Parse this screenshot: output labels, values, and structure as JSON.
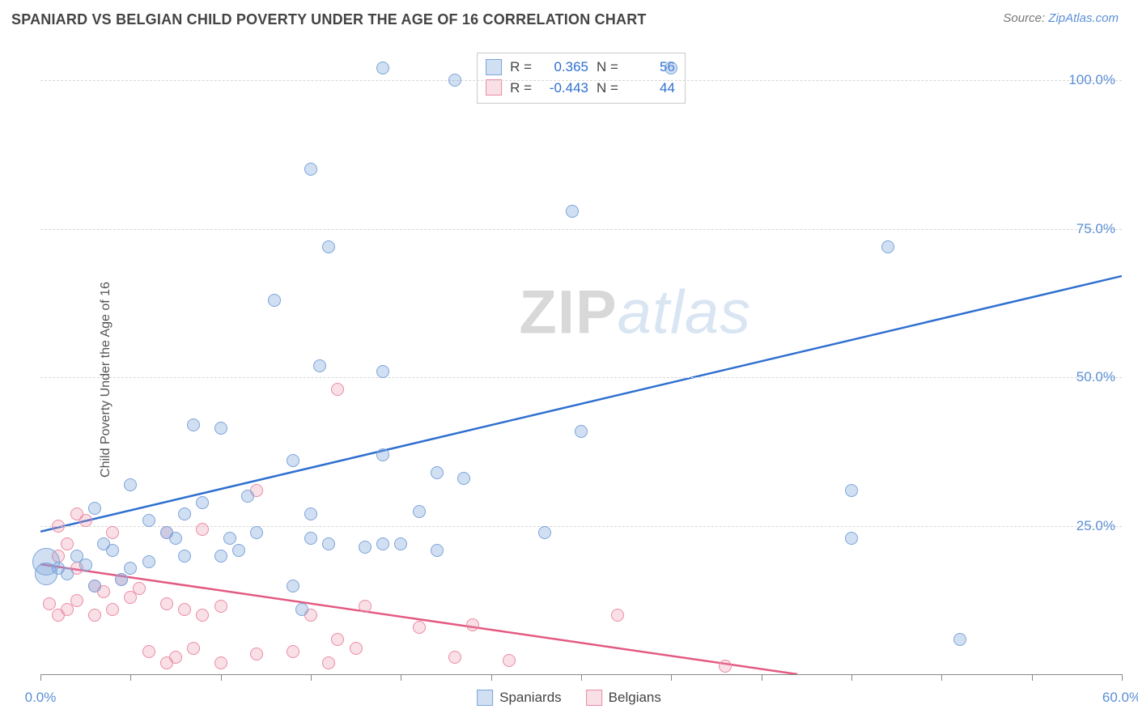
{
  "header": {
    "title": "SPANIARD VS BELGIAN CHILD POVERTY UNDER THE AGE OF 16 CORRELATION CHART",
    "source_prefix": "Source: ",
    "source_link": "ZipAtlas.com"
  },
  "watermark": {
    "zip": "ZIP",
    "atlas": "atlas"
  },
  "chart": {
    "type": "scatter",
    "ylabel": "Child Poverty Under the Age of 16",
    "xlim": [
      0,
      60
    ],
    "ylim": [
      0,
      105
    ],
    "xtick_positions": [
      0,
      5,
      10,
      15,
      20,
      25,
      30,
      35,
      40,
      45,
      50,
      55,
      60
    ],
    "xtick_labels": {
      "0": "0.0%",
      "60": "60.0%"
    },
    "ytick_positions": [
      25,
      50,
      75,
      100
    ],
    "ytick_labels": {
      "25": "25.0%",
      "50": "50.0%",
      "75": "75.0%",
      "100": "100.0%"
    },
    "grid_color": "#d6d6d6",
    "background": "#ffffff",
    "axis_color": "#888888",
    "label_color": "#5b8fd6",
    "title_fontsize": 18,
    "label_fontsize": 16,
    "tick_fontsize": 17,
    "default_marker_size": 16
  },
  "series": {
    "spaniards": {
      "label": "Spaniards",
      "color_fill": "rgba(124,164,219,0.35)",
      "color_stroke": "#7ca4db",
      "trend_color": "#2f6fd0",
      "trend_width": 2.5,
      "correlation_r": "0.365",
      "correlation_n": "56",
      "trend_line": {
        "x1": 0,
        "y1": 24,
        "x2": 60,
        "y2": 67
      },
      "points": [
        {
          "x": 0.3,
          "y": 19,
          "s": 34
        },
        {
          "x": 0.3,
          "y": 17,
          "s": 28
        },
        {
          "x": 19,
          "y": 102
        },
        {
          "x": 35,
          "y": 102
        },
        {
          "x": 23,
          "y": 100
        },
        {
          "x": 15,
          "y": 85
        },
        {
          "x": 29.5,
          "y": 78
        },
        {
          "x": 16,
          "y": 72
        },
        {
          "x": 47,
          "y": 72
        },
        {
          "x": 13,
          "y": 63
        },
        {
          "x": 15.5,
          "y": 52
        },
        {
          "x": 19,
          "y": 51
        },
        {
          "x": 8.5,
          "y": 42
        },
        {
          "x": 10,
          "y": 41.5
        },
        {
          "x": 30,
          "y": 41
        },
        {
          "x": 14,
          "y": 36
        },
        {
          "x": 22,
          "y": 34
        },
        {
          "x": 19,
          "y": 37
        },
        {
          "x": 23.5,
          "y": 33
        },
        {
          "x": 5,
          "y": 32
        },
        {
          "x": 45,
          "y": 31
        },
        {
          "x": 3,
          "y": 28
        },
        {
          "x": 9,
          "y": 29
        },
        {
          "x": 11.5,
          "y": 30
        },
        {
          "x": 6,
          "y": 26
        },
        {
          "x": 8,
          "y": 27
        },
        {
          "x": 15,
          "y": 27
        },
        {
          "x": 21,
          "y": 27.5
        },
        {
          "x": 28,
          "y": 24
        },
        {
          "x": 45,
          "y": 23
        },
        {
          "x": 1,
          "y": 18
        },
        {
          "x": 1.5,
          "y": 17
        },
        {
          "x": 2,
          "y": 20
        },
        {
          "x": 2.5,
          "y": 18.5
        },
        {
          "x": 3,
          "y": 15
        },
        {
          "x": 4,
          "y": 21
        },
        {
          "x": 4.5,
          "y": 16
        },
        {
          "x": 6,
          "y": 19
        },
        {
          "x": 7,
          "y": 24
        },
        {
          "x": 7.5,
          "y": 23
        },
        {
          "x": 10,
          "y": 20
        },
        {
          "x": 10.5,
          "y": 23
        },
        {
          "x": 12,
          "y": 24
        },
        {
          "x": 14,
          "y": 15
        },
        {
          "x": 15,
          "y": 23
        },
        {
          "x": 16,
          "y": 22
        },
        {
          "x": 18,
          "y": 21.5
        },
        {
          "x": 19,
          "y": 22
        },
        {
          "x": 20,
          "y": 22
        },
        {
          "x": 22,
          "y": 21
        },
        {
          "x": 8,
          "y": 20
        },
        {
          "x": 3.5,
          "y": 22
        },
        {
          "x": 14.5,
          "y": 11
        },
        {
          "x": 5,
          "y": 18
        },
        {
          "x": 51,
          "y": 6
        },
        {
          "x": 11,
          "y": 21
        }
      ]
    },
    "belgians": {
      "label": "Belgians",
      "color_fill": "rgba(235,140,165,0.28)",
      "color_stroke": "#eb8ca5",
      "trend_color": "#e35a82",
      "trend_width": 2.5,
      "correlation_r": "-0.443",
      "correlation_n": "44",
      "trend_line": {
        "x1": 0,
        "y1": 18.5,
        "x2": 42,
        "y2": 0
      },
      "points": [
        {
          "x": 16.5,
          "y": 48
        },
        {
          "x": 12,
          "y": 31
        },
        {
          "x": 1,
          "y": 25
        },
        {
          "x": 2,
          "y": 27
        },
        {
          "x": 2.5,
          "y": 26
        },
        {
          "x": 4,
          "y": 24
        },
        {
          "x": 7,
          "y": 24
        },
        {
          "x": 9,
          "y": 24.5
        },
        {
          "x": 1,
          "y": 20
        },
        {
          "x": 1.5,
          "y": 22
        },
        {
          "x": 2,
          "y": 18
        },
        {
          "x": 3,
          "y": 15
        },
        {
          "x": 3.5,
          "y": 14
        },
        {
          "x": 4.5,
          "y": 16
        },
        {
          "x": 5,
          "y": 13
        },
        {
          "x": 5.5,
          "y": 14.5
        },
        {
          "x": 0.5,
          "y": 12
        },
        {
          "x": 1,
          "y": 10
        },
        {
          "x": 1.5,
          "y": 11
        },
        {
          "x": 2,
          "y": 12.5
        },
        {
          "x": 3,
          "y": 10
        },
        {
          "x": 4,
          "y": 11
        },
        {
          "x": 7,
          "y": 12
        },
        {
          "x": 8,
          "y": 11
        },
        {
          "x": 9,
          "y": 10
        },
        {
          "x": 10,
          "y": 11.5
        },
        {
          "x": 6,
          "y": 4
        },
        {
          "x": 7,
          "y": 2
        },
        {
          "x": 7.5,
          "y": 3
        },
        {
          "x": 8.5,
          "y": 4.5
        },
        {
          "x": 10,
          "y": 2
        },
        {
          "x": 12,
          "y": 3.5
        },
        {
          "x": 14,
          "y": 4
        },
        {
          "x": 15,
          "y": 10
        },
        {
          "x": 16,
          "y": 2
        },
        {
          "x": 16.5,
          "y": 6
        },
        {
          "x": 17.5,
          "y": 4.5
        },
        {
          "x": 18,
          "y": 11.5
        },
        {
          "x": 21,
          "y": 8
        },
        {
          "x": 23,
          "y": 3
        },
        {
          "x": 24,
          "y": 8.5
        },
        {
          "x": 26,
          "y": 2.5
        },
        {
          "x": 32,
          "y": 10
        },
        {
          "x": 38,
          "y": 1.5
        }
      ]
    }
  },
  "legend_corr": {
    "r_label": "R =",
    "n_label": "N ="
  },
  "legend_bottom": {
    "spaniards_label": "Spaniards",
    "belgians_label": "Belgians"
  }
}
